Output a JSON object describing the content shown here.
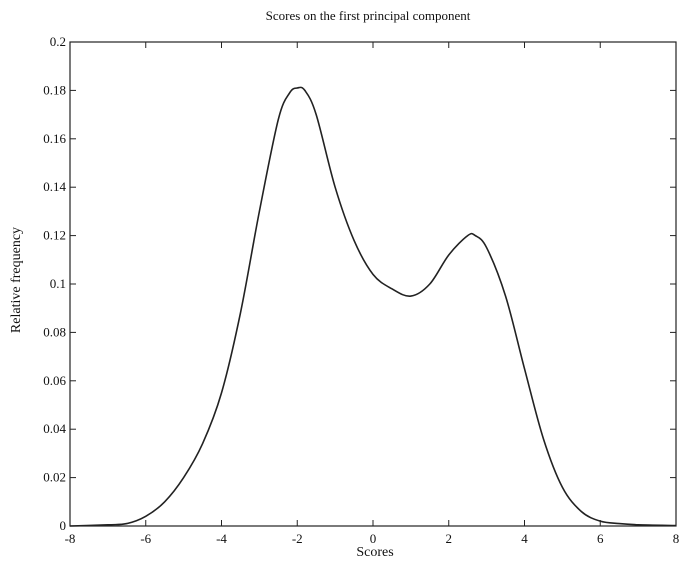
{
  "chart_data": {
    "type": "line",
    "title": "Scores on the first principal component",
    "xlabel": "Scores",
    "ylabel": "Relative frequency",
    "xlim": [
      -8,
      8
    ],
    "ylim": [
      0,
      0.2
    ],
    "xticks": [
      -8,
      -6,
      -4,
      -2,
      0,
      2,
      4,
      6,
      8
    ],
    "yticks": [
      0,
      0.02,
      0.04,
      0.06,
      0.08,
      0.1,
      0.12,
      0.14,
      0.16,
      0.18,
      0.2
    ],
    "grid": false,
    "legend": "none",
    "series": [
      {
        "x": [
          -8,
          -7,
          -6.5,
          -6,
          -5.5,
          -5,
          -4.5,
          -4,
          -3.5,
          -3,
          -2.5,
          -2.2,
          -2,
          -1.8,
          -1.5,
          -1,
          -0.5,
          0,
          0.5,
          1,
          1.5,
          2,
          2.5,
          2.7,
          3,
          3.5,
          4,
          4.5,
          5,
          5.5,
          6,
          6.5,
          7,
          8
        ],
        "y": [
          0,
          0.0005,
          0.001,
          0.004,
          0.01,
          0.02,
          0.034,
          0.055,
          0.088,
          0.13,
          0.168,
          0.179,
          0.181,
          0.18,
          0.17,
          0.14,
          0.118,
          0.104,
          0.098,
          0.095,
          0.1,
          0.112,
          0.12,
          0.12,
          0.115,
          0.095,
          0.065,
          0.036,
          0.016,
          0.006,
          0.002,
          0.001,
          0.0005,
          0.0002
        ],
        "color": "#222222"
      }
    ]
  }
}
